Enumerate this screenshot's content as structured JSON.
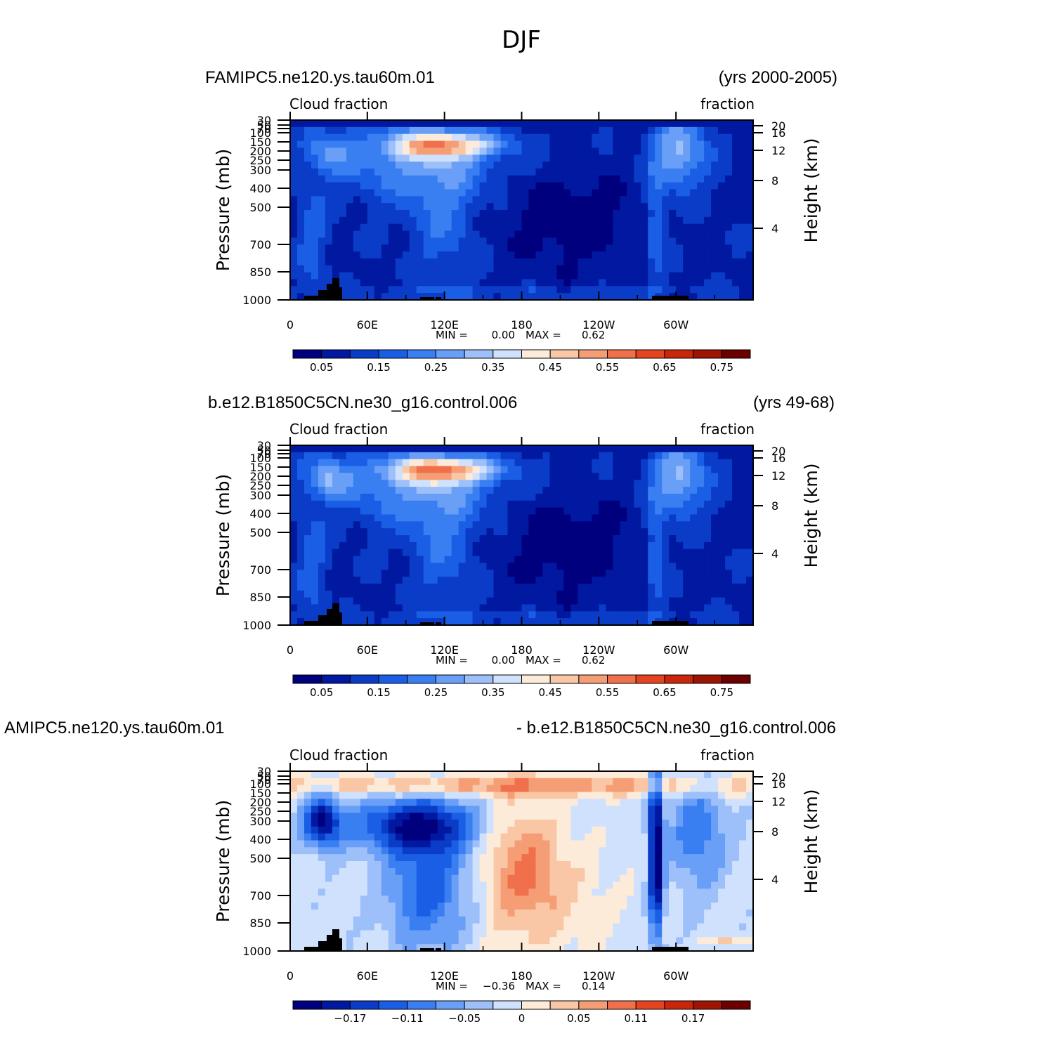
{
  "figure_title": "DJF",
  "chart_data": [
    {
      "type": "heatmap",
      "title_left": "FAMIPC5.ne120.ys.tau60m.01",
      "title_right": "(yrs 2000-2005)",
      "label_left": "Cloud  fraction",
      "label_right": "fraction",
      "xlabel": "",
      "ylabel": "Pressure  (mb)",
      "ylabel_right": "Height  (km)",
      "x_ticks": [
        "0",
        "60E",
        "120E",
        "180",
        "120W",
        "60W"
      ],
      "y_ticks": [
        "30",
        "50",
        "70",
        "100",
        "150",
        "200",
        "250",
        "300",
        "400",
        "500",
        "700",
        "850",
        "1000"
      ],
      "height_ticks": [
        "20",
        "16",
        "12",
        "8",
        "4"
      ],
      "stats": {
        "min_label": "MIN =",
        "min": "0.00",
        "max_label": "MAX =",
        "max": "0.62"
      },
      "colorbar_ticks": [
        "0.05",
        "0.15",
        "0.25",
        "0.35",
        "0.45",
        "0.55",
        "0.65",
        "0.75"
      ]
    },
    {
      "type": "heatmap",
      "title_left": "b.e12.B1850C5CN.ne30_g16.control.006",
      "title_right": "(yrs 49-68)",
      "label_left": "Cloud  fraction",
      "label_right": "fraction",
      "xlabel": "",
      "ylabel": "Pressure  (mb)",
      "ylabel_right": "Height  (km)",
      "x_ticks": [
        "0",
        "60E",
        "120E",
        "180",
        "120W",
        "60W"
      ],
      "y_ticks": [
        "30",
        "50",
        "70",
        "100",
        "150",
        "200",
        "250",
        "300",
        "400",
        "500",
        "700",
        "850",
        "1000"
      ],
      "height_ticks": [
        "20",
        "16",
        "12",
        "8",
        "4"
      ],
      "stats": {
        "min_label": "MIN =",
        "min": "0.00",
        "max_label": "MAX =",
        "max": "0.62"
      },
      "colorbar_ticks": [
        "0.05",
        "0.15",
        "0.25",
        "0.35",
        "0.45",
        "0.55",
        "0.65",
        "0.75"
      ]
    },
    {
      "type": "heatmap",
      "title_left": "AMIPC5.ne120.ys.tau60m.01",
      "title_right": "- b.e12.B1850C5CN.ne30_g16.control.006",
      "label_left": "Cloud  fraction",
      "label_right": "fraction",
      "xlabel": "",
      "ylabel": "Pressure  (mb)",
      "ylabel_right": "Height  (km)",
      "x_ticks": [
        "0",
        "60E",
        "120E",
        "180",
        "120W",
        "60W"
      ],
      "y_ticks": [
        "30",
        "50",
        "70",
        "100",
        "150",
        "200",
        "250",
        "300",
        "400",
        "500",
        "700",
        "850",
        "1000"
      ],
      "height_ticks": [
        "20",
        "16",
        "12",
        "8",
        "4"
      ],
      "stats": {
        "min_label": "MIN =",
        "min": "−0.36",
        "max_label": "MAX =",
        "max": "0.14"
      },
      "colorbar_ticks": [
        "−0.17",
        "−0.11",
        "−0.05",
        "0",
        "0.05",
        "0.11",
        "0.17"
      ]
    }
  ],
  "colors": {
    "scale": [
      "#00007f",
      "#0019a0",
      "#0a3cc8",
      "#1a5ee6",
      "#3a7ff2",
      "#6a9ff7",
      "#9ec0fa",
      "#cfe1fc",
      "#fdebd9",
      "#f9c7a6",
      "#f59e76",
      "#ef704a",
      "#e64320",
      "#c9260b",
      "#9d1403",
      "#6c0000"
    ],
    "seven_cb_colors": [
      "#00007f",
      "#0019a0",
      "#0a3cc8",
      "#1a5ee6",
      "#3a7ff2",
      "#6a9ff7",
      "#9ec0fa",
      "#cfe1fc",
      "#fdebd9",
      "#f9c7a6",
      "#f59e76",
      "#ef704a",
      "#e64320",
      "#c9260b",
      "#9d1403",
      "#6c0000"
    ],
    "terrain": "#000000"
  }
}
